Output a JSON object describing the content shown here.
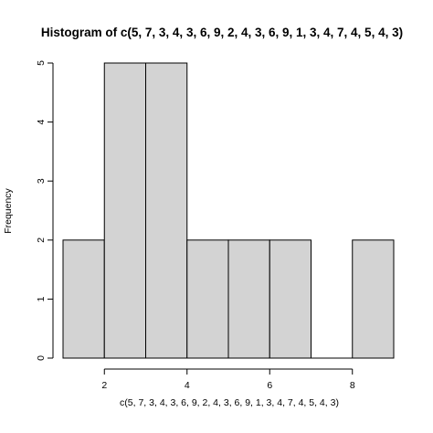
{
  "chart_data": {
    "type": "bar",
    "subtype": "histogram",
    "title": "Histogram of c(5, 7, 3, 4, 3, 6, 9, 2, 4, 3, 6, 9, 1, 3, 4, 7, 4, 5, 4, 3)",
    "xlabel": "c(5, 7, 3, 4, 3, 6, 9, 2, 4, 3, 6, 9, 1, 3, 4, 7, 4, 5, 4, 3)",
    "ylabel": "Frequency",
    "bins": [
      {
        "start": 1,
        "end": 2,
        "count": 2
      },
      {
        "start": 2,
        "end": 3,
        "count": 5
      },
      {
        "start": 3,
        "end": 4,
        "count": 5
      },
      {
        "start": 4,
        "end": 5,
        "count": 2
      },
      {
        "start": 5,
        "end": 6,
        "count": 2
      },
      {
        "start": 6,
        "end": 7,
        "count": 2
      },
      {
        "start": 7,
        "end": 8,
        "count": 0
      },
      {
        "start": 8,
        "end": 9,
        "count": 2
      }
    ],
    "xlim": [
      1,
      9
    ],
    "ylim": [
      0,
      5
    ],
    "x_ticks": [
      2,
      4,
      6,
      8
    ],
    "y_ticks": [
      0,
      1,
      2,
      3,
      4,
      5
    ],
    "bar_fill": "#d3d3d3",
    "grid": false,
    "legend": "none"
  }
}
